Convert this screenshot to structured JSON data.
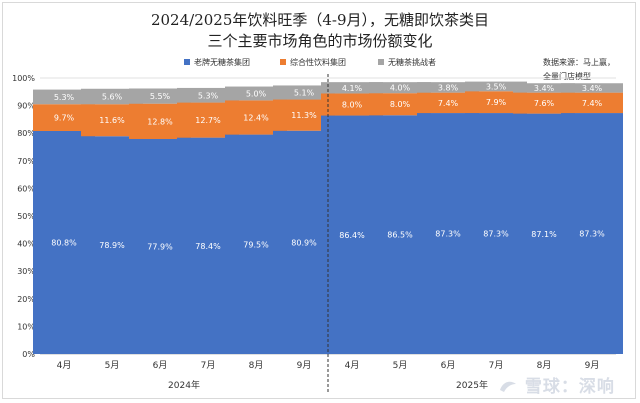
{
  "title_line1": "2024/2025年饮料旺季（4-9月），无糖即饮茶类目",
  "title_line2": "三个主要市场角色的市场份额变化",
  "source_line1": "数据来源：马上赢，",
  "source_line2": "全量门店模型",
  "watermark_text": "雪球：深响",
  "chart_data": {
    "type": "bar",
    "stacked": true,
    "grid": true,
    "legend_position": "top",
    "ylim": [
      0,
      100
    ],
    "yticks": [
      "0%",
      "10%",
      "20%",
      "30%",
      "40%",
      "50%",
      "60%",
      "70%",
      "80%",
      "90%",
      "100%"
    ],
    "categories": [
      "4月",
      "5月",
      "6月",
      "7月",
      "8月",
      "9月",
      "4月",
      "5月",
      "6月",
      "7月",
      "8月",
      "9月"
    ],
    "groups": [
      {
        "label": "2024年"
      },
      {
        "label": "2025年"
      }
    ],
    "series": [
      {
        "name": "老牌无糖茶集团",
        "color": "#4472C4",
        "values": [
          80.8,
          78.9,
          77.9,
          78.4,
          79.5,
          80.9,
          86.4,
          86.5,
          87.3,
          87.3,
          87.1,
          87.3
        ],
        "labels": [
          "80.8%",
          "78.9%",
          "77.9%",
          "78.4%",
          "79.5%",
          "80.9%",
          "86.4%",
          "86.5%",
          "87.3%",
          "87.3%",
          "87.1%",
          "87.3%"
        ]
      },
      {
        "name": "综合性饮料集团",
        "color": "#ED7D31",
        "values": [
          9.7,
          11.6,
          12.8,
          12.7,
          12.4,
          11.3,
          8.0,
          8.0,
          7.4,
          7.9,
          7.6,
          7.4
        ],
        "labels": [
          "9.7%",
          "11.6%",
          "12.8%",
          "12.7%",
          "12.4%",
          "11.3%",
          "8.0%",
          "8.0%",
          "7.4%",
          "7.9%",
          "7.6%",
          "7.4%"
        ]
      },
      {
        "name": "无糖茶挑战者",
        "color": "#A5A5A5",
        "values": [
          5.3,
          5.6,
          5.5,
          5.3,
          5.0,
          5.1,
          4.1,
          4.0,
          3.8,
          3.5,
          3.4,
          3.4
        ],
        "labels": [
          "5.3%",
          "5.6%",
          "5.5%",
          "5.3%",
          "5.0%",
          "5.1%",
          "4.1%",
          "4.0%",
          "3.8%",
          "3.5%",
          "3.4%",
          "3.4%"
        ]
      }
    ]
  }
}
